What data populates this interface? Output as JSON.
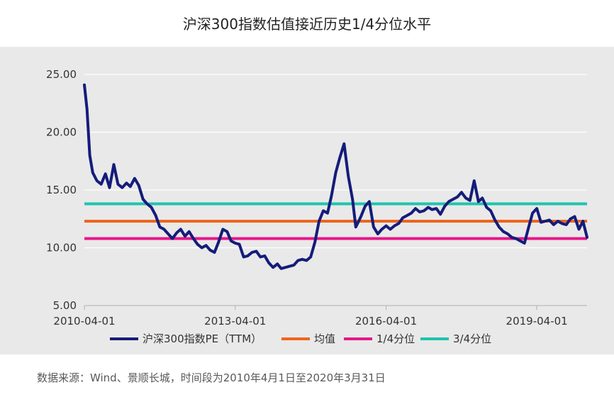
{
  "title": "沪深300指数估值接近历史1/4分位水平",
  "source": "数据来源：Wind、景顺长城，时间段为2010年4月1日至2020年3月31日",
  "colors": {
    "pe": "#141c7a",
    "mean": "#f0651c",
    "q1": "#e8168a",
    "q3": "#1fc4ae",
    "panel": "#e9e9e9",
    "grid": "#ffffff",
    "axis": "#b0b0b0",
    "text": "#333333"
  },
  "chart_data": {
    "type": "line",
    "title": "沪深300指数估值接近历史1/4分位水平",
    "xlabel": "",
    "ylabel": "",
    "x_range": [
      "2010-04-01",
      "2020-03-31"
    ],
    "ylim": [
      5,
      25
    ],
    "y_ticks": [
      "5.00",
      "10.00",
      "15.00",
      "20.00",
      "25.00"
    ],
    "x_ticks": [
      "2010-04-01",
      "2013-04-01",
      "2016-04-01",
      "2019-04-01"
    ],
    "grid": "horizontal",
    "legend_position": "bottom",
    "series": [
      {
        "name": "沪深300指数PE（TTM）",
        "color": "#141c7a",
        "points": [
          [
            "2010-04-01",
            24.1
          ],
          [
            "2010-04-20",
            22.0
          ],
          [
            "2010-05-10",
            18.0
          ],
          [
            "2010-06-01",
            16.5
          ],
          [
            "2010-07-01",
            15.8
          ],
          [
            "2010-08-01",
            15.5
          ],
          [
            "2010-09-01",
            16.4
          ],
          [
            "2010-10-01",
            15.2
          ],
          [
            "2010-11-01",
            17.2
          ],
          [
            "2010-12-01",
            15.5
          ],
          [
            "2011-01-01",
            15.2
          ],
          [
            "2011-02-01",
            15.6
          ],
          [
            "2011-03-01",
            15.3
          ],
          [
            "2011-04-01",
            16.0
          ],
          [
            "2011-05-01",
            15.4
          ],
          [
            "2011-06-01",
            14.2
          ],
          [
            "2011-07-01",
            13.8
          ],
          [
            "2011-08-01",
            13.5
          ],
          [
            "2011-09-01",
            12.8
          ],
          [
            "2011-10-01",
            11.8
          ],
          [
            "2011-11-01",
            11.6
          ],
          [
            "2011-12-01",
            11.2
          ],
          [
            "2012-01-01",
            10.8
          ],
          [
            "2012-02-01",
            11.3
          ],
          [
            "2012-03-01",
            11.6
          ],
          [
            "2012-04-01",
            11.0
          ],
          [
            "2012-05-01",
            11.4
          ],
          [
            "2012-06-01",
            10.8
          ],
          [
            "2012-07-01",
            10.3
          ],
          [
            "2012-08-01",
            10.0
          ],
          [
            "2012-09-01",
            10.2
          ],
          [
            "2012-10-01",
            9.8
          ],
          [
            "2012-11-01",
            9.6
          ],
          [
            "2012-12-01",
            10.5
          ],
          [
            "2013-01-01",
            11.6
          ],
          [
            "2013-02-01",
            11.4
          ],
          [
            "2013-03-01",
            10.6
          ],
          [
            "2013-04-01",
            10.4
          ],
          [
            "2013-05-01",
            10.3
          ],
          [
            "2013-06-01",
            9.2
          ],
          [
            "2013-07-01",
            9.3
          ],
          [
            "2013-08-01",
            9.6
          ],
          [
            "2013-09-01",
            9.7
          ],
          [
            "2013-10-01",
            9.2
          ],
          [
            "2013-11-01",
            9.3
          ],
          [
            "2013-12-01",
            8.7
          ],
          [
            "2014-01-01",
            8.3
          ],
          [
            "2014-02-01",
            8.6
          ],
          [
            "2014-03-01",
            8.2
          ],
          [
            "2014-04-01",
            8.3
          ],
          [
            "2014-05-01",
            8.4
          ],
          [
            "2014-06-01",
            8.5
          ],
          [
            "2014-07-01",
            8.9
          ],
          [
            "2014-08-01",
            9.0
          ],
          [
            "2014-09-01",
            8.9
          ],
          [
            "2014-10-01",
            9.2
          ],
          [
            "2014-11-01",
            10.5
          ],
          [
            "2014-12-01",
            12.3
          ],
          [
            "2015-01-01",
            13.2
          ],
          [
            "2015-02-01",
            13.0
          ],
          [
            "2015-03-01",
            14.5
          ],
          [
            "2015-04-01",
            16.5
          ],
          [
            "2015-05-01",
            17.8
          ],
          [
            "2015-06-01",
            19.0
          ],
          [
            "2015-07-01",
            16.2
          ],
          [
            "2015-08-01",
            14.2
          ],
          [
            "2015-08-25",
            11.8
          ],
          [
            "2015-09-15",
            12.3
          ],
          [
            "2015-10-01",
            12.7
          ],
          [
            "2015-11-01",
            13.6
          ],
          [
            "2015-12-01",
            14.0
          ],
          [
            "2016-01-01",
            11.8
          ],
          [
            "2016-02-01",
            11.2
          ],
          [
            "2016-03-01",
            11.6
          ],
          [
            "2016-04-01",
            11.9
          ],
          [
            "2016-05-01",
            11.6
          ],
          [
            "2016-06-01",
            11.9
          ],
          [
            "2016-07-01",
            12.1
          ],
          [
            "2016-08-01",
            12.6
          ],
          [
            "2016-09-01",
            12.8
          ],
          [
            "2016-10-01",
            13.0
          ],
          [
            "2016-11-01",
            13.4
          ],
          [
            "2016-12-01",
            13.1
          ],
          [
            "2017-01-01",
            13.2
          ],
          [
            "2017-02-01",
            13.5
          ],
          [
            "2017-03-01",
            13.3
          ],
          [
            "2017-04-01",
            13.4
          ],
          [
            "2017-05-01",
            12.9
          ],
          [
            "2017-06-01",
            13.6
          ],
          [
            "2017-07-01",
            14.0
          ],
          [
            "2017-08-01",
            14.2
          ],
          [
            "2017-09-01",
            14.4
          ],
          [
            "2017-10-01",
            14.8
          ],
          [
            "2017-11-01",
            14.3
          ],
          [
            "2017-12-01",
            14.1
          ],
          [
            "2018-01-01",
            15.8
          ],
          [
            "2018-02-01",
            14.0
          ],
          [
            "2018-03-01",
            14.3
          ],
          [
            "2018-04-01",
            13.5
          ],
          [
            "2018-05-01",
            13.2
          ],
          [
            "2018-06-01",
            12.4
          ],
          [
            "2018-07-01",
            11.8
          ],
          [
            "2018-08-01",
            11.4
          ],
          [
            "2018-09-01",
            11.2
          ],
          [
            "2018-10-01",
            10.9
          ],
          [
            "2018-11-01",
            10.8
          ],
          [
            "2018-12-01",
            10.6
          ],
          [
            "2019-01-01",
            10.4
          ],
          [
            "2019-02-01",
            11.8
          ],
          [
            "2019-03-01",
            13.0
          ],
          [
            "2019-04-01",
            13.4
          ],
          [
            "2019-05-01",
            12.2
          ],
          [
            "2019-06-01",
            12.3
          ],
          [
            "2019-07-01",
            12.4
          ],
          [
            "2019-08-01",
            12.0
          ],
          [
            "2019-09-01",
            12.3
          ],
          [
            "2019-10-01",
            12.1
          ],
          [
            "2019-11-01",
            12.0
          ],
          [
            "2019-12-01",
            12.5
          ],
          [
            "2020-01-01",
            12.7
          ],
          [
            "2020-02-01",
            11.6
          ],
          [
            "2020-03-01",
            12.3
          ],
          [
            "2020-03-31",
            10.9
          ]
        ]
      },
      {
        "name": "均值",
        "color": "#f0651c",
        "value": 12.3
      },
      {
        "name": "1/4分位",
        "color": "#e8168a",
        "value": 10.8
      },
      {
        "name": "3/4分位",
        "color": "#1fc4ae",
        "value": 13.8
      }
    ]
  }
}
